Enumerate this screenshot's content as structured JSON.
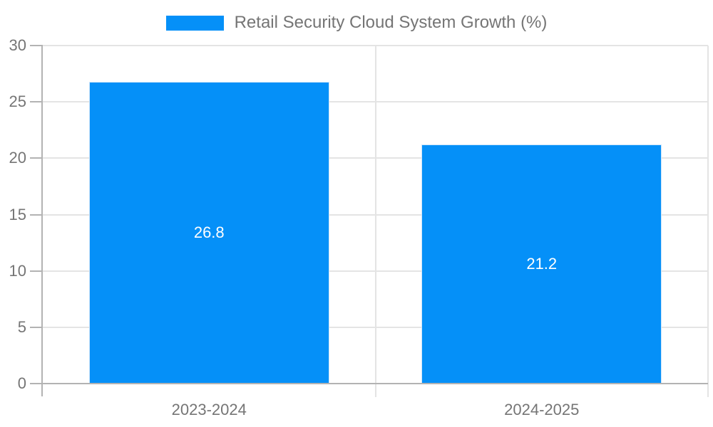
{
  "chart_data": {
    "type": "bar",
    "title": "Retail Security Cloud System Growth (%)",
    "categories": [
      "2023-2024",
      "2024-2025"
    ],
    "values": [
      26.8,
      21.2
    ],
    "value_labels": [
      "26.8",
      "21.2"
    ],
    "ylim": [
      0,
      30
    ],
    "yticks": [
      0,
      5,
      10,
      15,
      20,
      25,
      30
    ],
    "grid": true,
    "legend_position": "top",
    "colors": {
      "bar": "#0590f8",
      "bar_edge": "#cfe6fa",
      "grid": "#e4e4e4",
      "axis": "#b3b3b3",
      "text": "#757575",
      "value_label": "#ffffff",
      "background": "#ffffff"
    }
  }
}
